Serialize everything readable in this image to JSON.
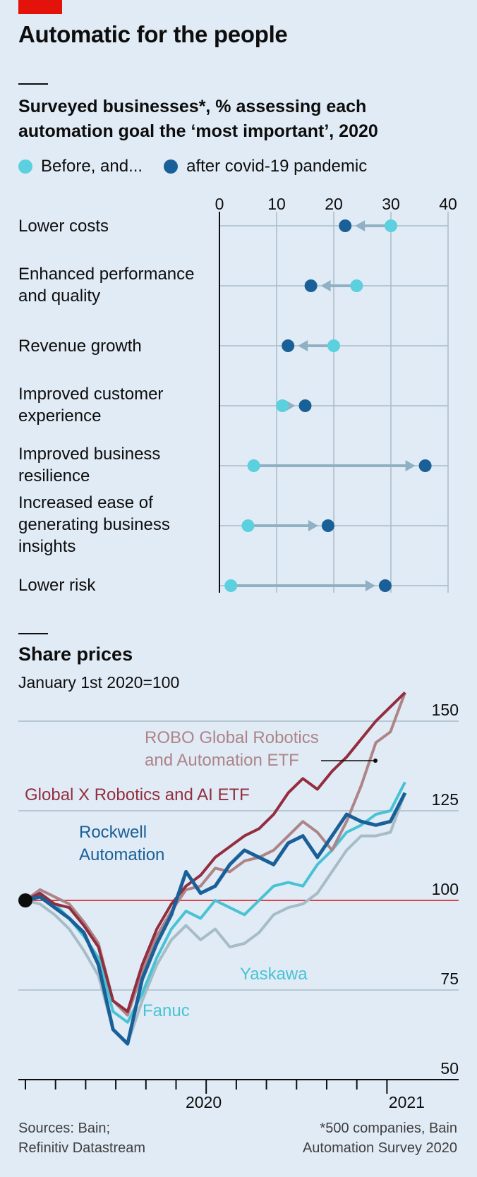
{
  "header": {
    "title": "Automatic for the people"
  },
  "colors": {
    "before": "#5bd0de",
    "after": "#1a6098",
    "robo": "#ad8488",
    "globalx": "#922e3f",
    "rockwell": "#1a6098",
    "fanuc": "#47c3d4",
    "yaskawa": "#a6bcc6",
    "ref_line": "#db444b"
  },
  "chart_data": [
    {
      "type": "dot-arrow",
      "title": "Surveyed businesses*, % assessing each automation goal the ‘most important’, 2020",
      "legend": [
        "Before, and...",
        "after covid-19 pandemic"
      ],
      "xlim": [
        0,
        40
      ],
      "x_ticks": [
        0,
        10,
        20,
        30,
        40
      ],
      "categories": [
        "Lower costs",
        "Enhanced performance and quality",
        "Revenue growth",
        "Improved customer experience",
        "Improved business resilience",
        "Increased ease of generating business insights",
        "Lower risk"
      ],
      "series": [
        {
          "name": "Before, and...",
          "values": [
            30,
            24,
            20,
            11,
            6,
            5,
            2
          ]
        },
        {
          "name": "after covid-19 pandemic",
          "values": [
            22,
            16,
            12,
            15,
            36,
            19,
            29
          ]
        }
      ]
    },
    {
      "type": "line",
      "title": "Share prices",
      "subtitle": "January 1st 2020=100",
      "ylim": [
        50,
        160
      ],
      "y_ticks": [
        50,
        75,
        100,
        125,
        150
      ],
      "x_labels": [
        "2020",
        "2021"
      ],
      "x_range": [
        "2020-01-01",
        "2021-01-20"
      ],
      "baseline": 100,
      "series": [
        {
          "name": "ROBO Global Robotics and Automation ETF",
          "values": [
            100,
            103,
            101,
            99,
            94,
            88,
            72,
            68,
            80,
            90,
            97,
            103,
            104,
            109,
            108,
            111,
            112,
            114,
            118,
            122,
            119,
            114,
            122,
            132,
            144,
            147,
            158
          ]
        },
        {
          "name": "Global X Robotics and AI ETF",
          "values": [
            100,
            102,
            99,
            98,
            93,
            87,
            72,
            69,
            82,
            92,
            99,
            104,
            107,
            112,
            115,
            118,
            120,
            124,
            130,
            134,
            131,
            136,
            140,
            145,
            150,
            154,
            158
          ]
        },
        {
          "name": "Rockwell Automation",
          "values": [
            100,
            101,
            98,
            95,
            91,
            82,
            64,
            60,
            78,
            88,
            96,
            108,
            102,
            104,
            110,
            114,
            112,
            110,
            116,
            118,
            112,
            118,
            124,
            122,
            121,
            122,
            130
          ]
        },
        {
          "name": "Fanuc",
          "values": [
            100,
            101,
            99,
            95,
            90,
            84,
            69,
            66,
            74,
            84,
            92,
            97,
            95,
            100,
            98,
            96,
            100,
            104,
            105,
            104,
            110,
            114,
            119,
            121,
            124,
            125,
            133
          ]
        },
        {
          "name": "Yaskawa",
          "values": [
            100,
            99,
            96,
            92,
            86,
            79,
            64,
            60,
            72,
            82,
            89,
            93,
            89,
            92,
            87,
            88,
            91,
            96,
            98,
            99,
            102,
            108,
            114,
            118,
            118,
            119,
            130
          ]
        }
      ]
    }
  ],
  "footer": {
    "sources": "Sources: Bain;\nRefinitiv Datastream",
    "note": "*500 companies, Bain\nAutomation Survey 2020"
  }
}
